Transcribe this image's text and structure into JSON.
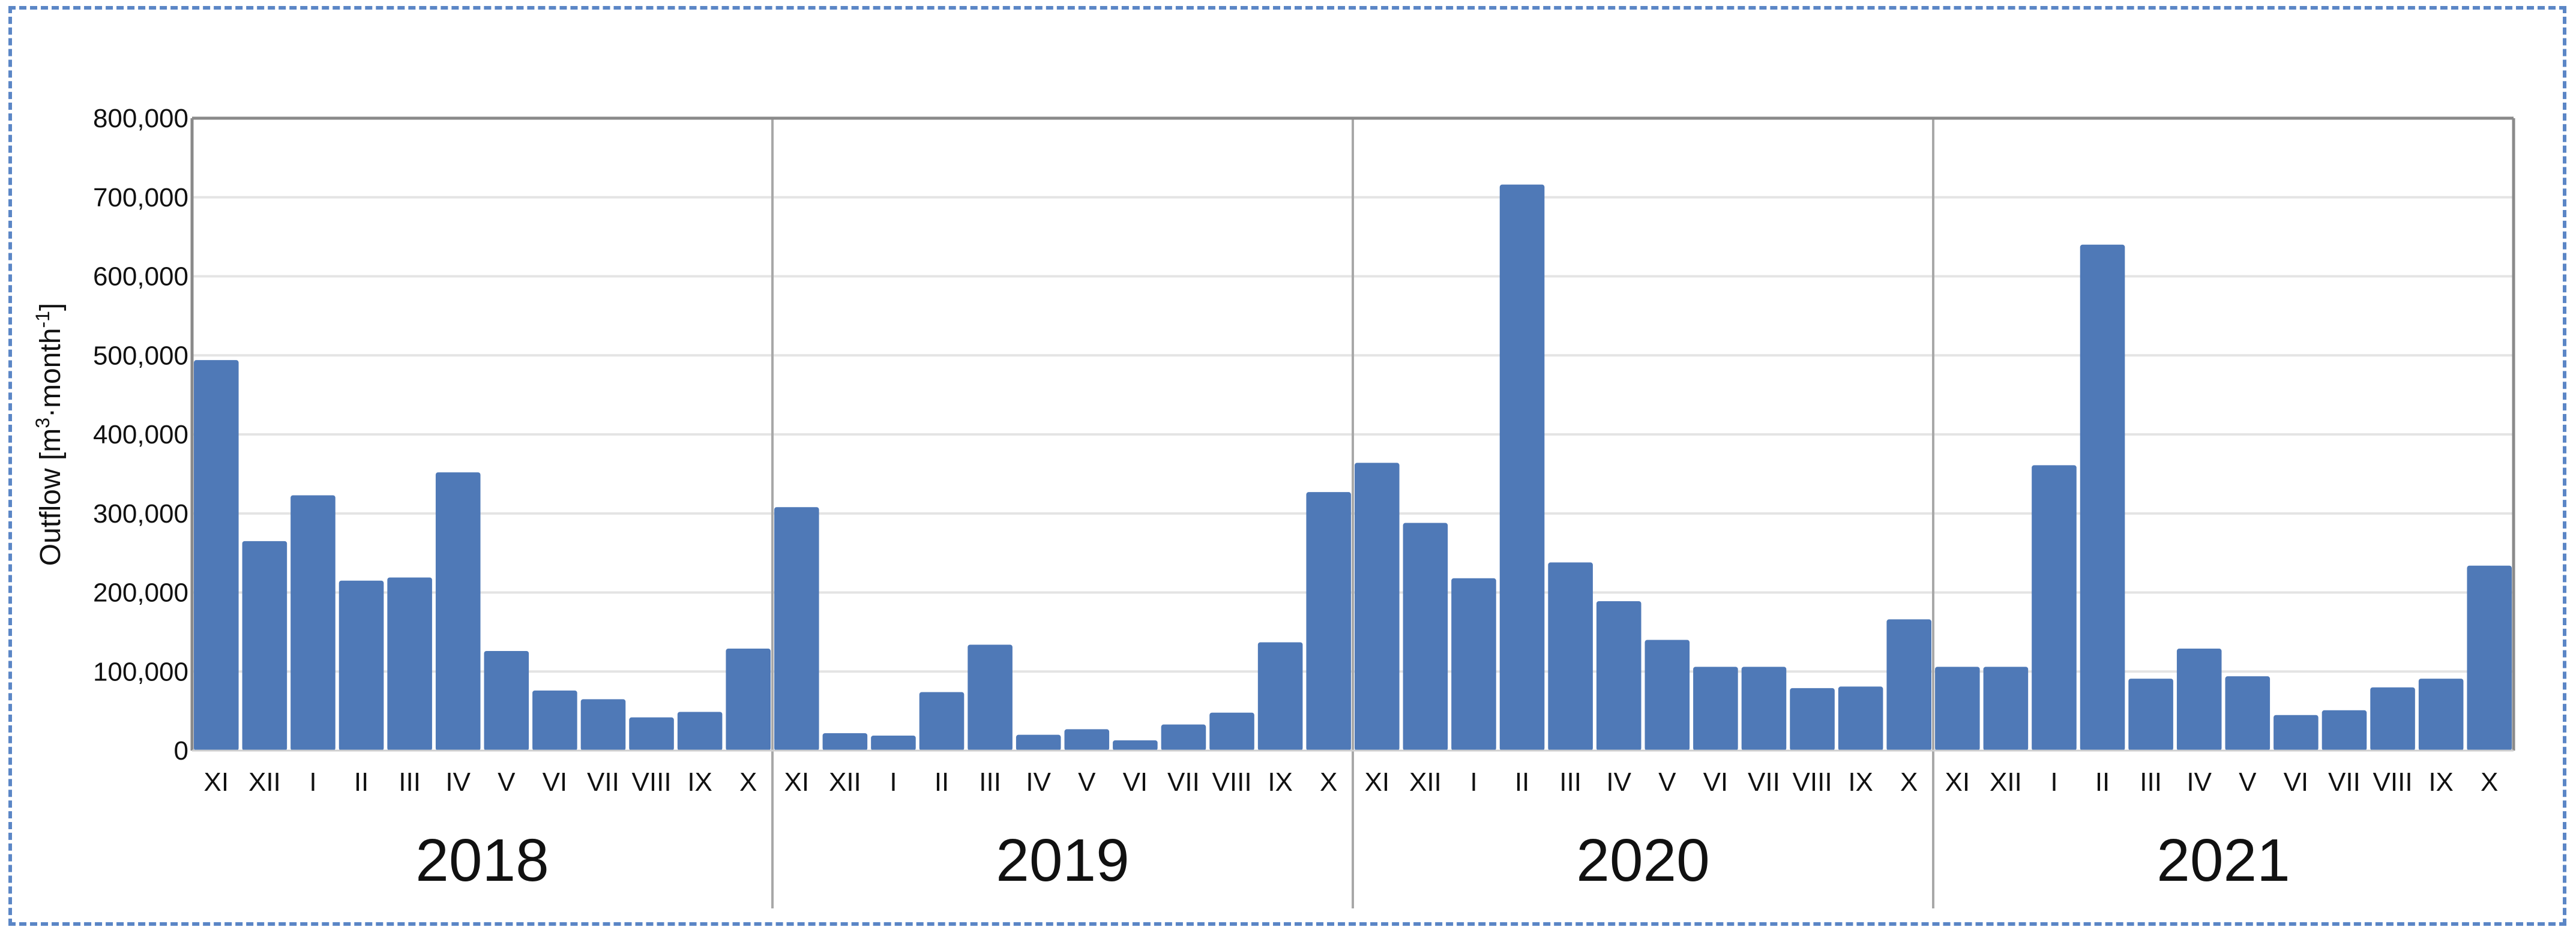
{
  "chart_data": {
    "type": "bar",
    "ylabel": "Outflow [m³·month⁻¹]",
    "ylabel_parts": {
      "main": "Outflow [m",
      "sup1": "3",
      "mid": "·month",
      "sup2": "-1",
      "end": "]"
    },
    "ylim": [
      0,
      800000
    ],
    "yticks": [
      "0",
      "100,000",
      "200,000",
      "300,000",
      "400,000",
      "500,000",
      "600,000",
      "700,000",
      "800,000"
    ],
    "grid": true,
    "bar_color": "#4f79b7",
    "months": [
      "XI",
      "XII",
      "I",
      "II",
      "III",
      "IV",
      "V",
      "VI",
      "VII",
      "VIII",
      "IX",
      "X"
    ],
    "groups": [
      {
        "year": "2018",
        "values": [
          494000,
          265000,
          323000,
          215000,
          219000,
          352000,
          126000,
          76000,
          65000,
          42000,
          49000,
          129000
        ]
      },
      {
        "year": "2019",
        "values": [
          308000,
          22000,
          19000,
          74000,
          134000,
          20000,
          27000,
          13000,
          33000,
          48000,
          137000,
          327000
        ]
      },
      {
        "year": "2020",
        "values": [
          364000,
          288000,
          218000,
          716000,
          238000,
          189000,
          140000,
          106000,
          106000,
          79000,
          81000,
          166000
        ]
      },
      {
        "year": "2021",
        "values": [
          106000,
          106000,
          361000,
          640000,
          91000,
          129000,
          94000,
          45000,
          51000,
          80000,
          91000,
          234000
        ]
      }
    ]
  }
}
